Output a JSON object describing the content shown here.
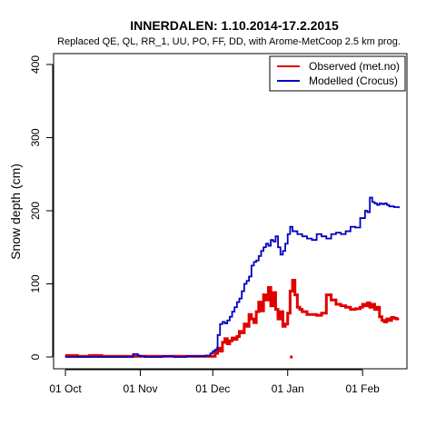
{
  "chart_data": {
    "type": "line",
    "title": "INNERDALEN: 1.10.2014-17.2.2015",
    "subtitle": "Replaced QE, QL, RR_1, UU, PO, FF, DD,  with Arome-MetCoop 2.5 km prog.",
    "xlabel": "",
    "ylabel": "Snow depth (cm)",
    "xlim": [
      0,
      140
    ],
    "ylim": [
      -10,
      410
    ],
    "x_ticks": [
      {
        "day": 0,
        "label": "01 Oct"
      },
      {
        "day": 31,
        "label": "01 Nov"
      },
      {
        "day": 61,
        "label": "01 Dec"
      },
      {
        "day": 92,
        "label": "01 Jan"
      },
      {
        "day": 123,
        "label": "01 Feb"
      }
    ],
    "y_ticks": [
      0,
      100,
      200,
      300,
      400
    ],
    "legend_position": "top-right",
    "series": [
      {
        "name": "Observed (met.no)",
        "color": "#e00000",
        "x": [
          0,
          5,
          10,
          15,
          20,
          25,
          30,
          35,
          40,
          45,
          50,
          55,
          60,
          62,
          63,
          64,
          65,
          66,
          67,
          68,
          69,
          70,
          71,
          72,
          73,
          74,
          75,
          76,
          77,
          78,
          79,
          80,
          81,
          82,
          83,
          84,
          85,
          86,
          87,
          88,
          89,
          90,
          91,
          92,
          93,
          94,
          95,
          96,
          97,
          98,
          100,
          102,
          104,
          106,
          108,
          110,
          112,
          114,
          116,
          118,
          120,
          122,
          123,
          124,
          125,
          126,
          127,
          128,
          129,
          130,
          131,
          132,
          133,
          134,
          135,
          136,
          137,
          138
        ],
        "y": [
          2,
          1,
          2,
          1,
          1,
          1,
          1,
          1,
          1,
          1,
          1,
          1,
          1,
          5,
          12,
          8,
          20,
          25,
          18,
          22,
          26,
          24,
          28,
          35,
          33,
          45,
          42,
          58,
          52,
          47,
          62,
          75,
          63,
          85,
          78,
          95,
          70,
          88,
          65,
          52,
          62,
          42,
          45,
          60,
          90,
          105,
          85,
          68,
          65,
          62,
          58,
          58,
          57,
          60,
          85,
          78,
          72,
          70,
          68,
          65,
          66,
          68,
          72,
          70,
          74,
          68,
          72,
          65,
          68,
          55,
          50,
          48,
          52,
          50,
          54,
          53,
          52,
          52
        ]
      },
      {
        "name": "Modelled (Crocus)",
        "color": "#0000c0",
        "x": [
          0,
          5,
          10,
          15,
          20,
          25,
          28,
          30,
          31,
          33,
          35,
          40,
          45,
          50,
          55,
          58,
          60,
          61,
          62,
          63,
          64,
          65,
          66,
          67,
          68,
          69,
          70,
          71,
          72,
          73,
          74,
          75,
          76,
          77,
          78,
          79,
          80,
          81,
          82,
          83,
          84,
          85,
          86,
          87,
          88,
          89,
          90,
          91,
          92,
          93,
          94,
          96,
          98,
          100,
          102,
          104,
          106,
          108,
          110,
          112,
          114,
          116,
          118,
          120,
          122,
          124,
          125,
          126,
          127,
          128,
          129,
          130,
          131,
          132,
          133,
          134,
          135,
          136,
          137,
          138
        ],
        "y": [
          0,
          0,
          0,
          0,
          0,
          0,
          4,
          2,
          1,
          0,
          0,
          1,
          0,
          1,
          1,
          2,
          5,
          8,
          10,
          30,
          45,
          48,
          46,
          50,
          55,
          62,
          68,
          75,
          80,
          90,
          100,
          104,
          110,
          125,
          130,
          132,
          138,
          145,
          150,
          155,
          152,
          160,
          158,
          165,
          150,
          140,
          145,
          155,
          168,
          178,
          172,
          168,
          165,
          162,
          160,
          168,
          165,
          162,
          168,
          170,
          168,
          172,
          178,
          177,
          190,
          200,
          198,
          218,
          212,
          210,
          208,
          210,
          209,
          210,
          208,
          206,
          206,
          205,
          205,
          204
        ]
      }
    ]
  }
}
